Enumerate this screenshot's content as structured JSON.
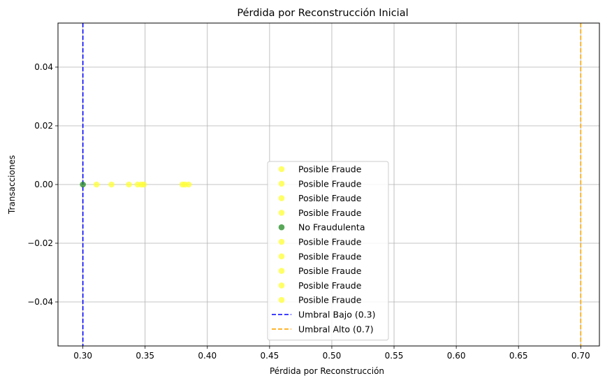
{
  "chart_data": {
    "type": "scatter",
    "title": "Pérdida por Reconstrucción Inicial",
    "xlabel": "Pérdida por Reconstrucción",
    "ylabel": "Transacciones",
    "xlim": [
      0.28,
      0.715
    ],
    "ylim": [
      -0.055,
      0.055
    ],
    "x_ticks": [
      "0.30",
      "0.35",
      "0.40",
      "0.45",
      "0.50",
      "0.55",
      "0.60",
      "0.65",
      "0.70"
    ],
    "x_tick_values": [
      0.3,
      0.35,
      0.4,
      0.45,
      0.5,
      0.55,
      0.6,
      0.65,
      0.7
    ],
    "y_ticks": [
      "0.04",
      "0.02",
      "0.00",
      "−0.02",
      "−0.04"
    ],
    "y_tick_values": [
      0.04,
      0.02,
      0.0,
      -0.02,
      -0.04
    ],
    "grid": true,
    "legend_position": "lower-center",
    "points": [
      {
        "name": "Posible Fraude",
        "x": 0.311,
        "y": 0,
        "color": "#ffff33"
      },
      {
        "name": "Posible Fraude",
        "x": 0.323,
        "y": 0,
        "color": "#ffff33"
      },
      {
        "name": "Posible Fraude",
        "x": 0.337,
        "y": 0,
        "color": "#ffff33"
      },
      {
        "name": "Posible Fraude",
        "x": 0.344,
        "y": 0,
        "color": "#ffff33"
      },
      {
        "name": "No Fraudulenta",
        "x": 0.3,
        "y": 0,
        "color": "#228b22"
      },
      {
        "name": "Posible Fraude",
        "x": 0.347,
        "y": 0,
        "color": "#ffff33"
      },
      {
        "name": "Posible Fraude",
        "x": 0.349,
        "y": 0,
        "color": "#ffff33"
      },
      {
        "name": "Posible Fraude",
        "x": 0.38,
        "y": 0,
        "color": "#ffff33"
      },
      {
        "name": "Posible Fraude",
        "x": 0.382,
        "y": 0,
        "color": "#ffff33"
      },
      {
        "name": "Posible Fraude",
        "x": 0.385,
        "y": 0,
        "color": "#ffff33"
      }
    ],
    "threshold_lines": [
      {
        "name": "Umbral Bajo (0.3)",
        "x": 0.3,
        "color": "#0000ff"
      },
      {
        "name": "Umbral Alto (0.7)",
        "x": 0.7,
        "color": "#ffa500"
      }
    ]
  }
}
